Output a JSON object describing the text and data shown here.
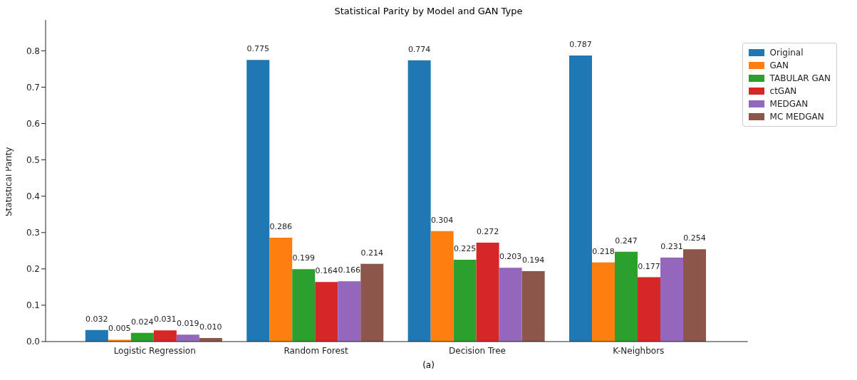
{
  "chart_data": {
    "type": "bar",
    "title": "Statistical Parity by Model and GAN Type",
    "ylabel": "Statistical Parity",
    "categories": [
      "Logistic Regression",
      "Random Forest",
      "Decision Tree",
      "K-Neighbors"
    ],
    "series": [
      {
        "name": "Original",
        "color": "#1f77b4",
        "values": [
          0.032,
          0.775,
          0.774,
          0.787
        ],
        "value_labels": [
          "0.032",
          "0.775",
          "0.774",
          "0.787"
        ]
      },
      {
        "name": "GAN",
        "color": "#ff7f0e",
        "values": [
          0.005,
          0.286,
          0.304,
          0.218
        ],
        "value_labels": [
          "0.005",
          "0.286",
          "0.304",
          "0.218"
        ]
      },
      {
        "name": "TABULAR GAN",
        "color": "#2ca02c",
        "values": [
          0.024,
          0.199,
          0.225,
          0.247
        ],
        "value_labels": [
          "0.024",
          "0.199",
          "0.225",
          "0.247"
        ]
      },
      {
        "name": "ctGAN",
        "color": "#d62728",
        "values": [
          0.031,
          0.164,
          0.272,
          0.177
        ],
        "value_labels": [
          "0.031",
          "0.164",
          "0.272",
          "0.177"
        ]
      },
      {
        "name": "MEDGAN",
        "color": "#9467bd",
        "values": [
          0.019,
          0.166,
          0.203,
          0.231
        ],
        "value_labels": [
          "0.019",
          "0.166",
          "0.203",
          "0.231"
        ]
      },
      {
        "name": "MC MEDGAN",
        "color": "#8c564b",
        "values": [
          0.01,
          0.214,
          0.194,
          0.254
        ],
        "value_labels": [
          "0.010",
          "0.214",
          "0.194",
          "0.254"
        ]
      }
    ],
    "ylim": [
      0,
      0.885
    ],
    "yticks": [
      {
        "value": 0,
        "label": "0.0"
      },
      {
        "value": 0.1,
        "label": "0.1"
      },
      {
        "value": 0.2,
        "label": "0.2"
      },
      {
        "value": 0.3,
        "label": "0.3"
      },
      {
        "value": 0.4,
        "label": "0.4"
      },
      {
        "value": 0.5,
        "label": "0.5"
      },
      {
        "value": 0.6,
        "label": "0.6"
      },
      {
        "value": 0.7,
        "label": "0.7"
      },
      {
        "value": 0.8,
        "label": "0.8"
      }
    ],
    "grid": false,
    "legend": "top right",
    "annotations": [
      "(a)"
    ]
  }
}
